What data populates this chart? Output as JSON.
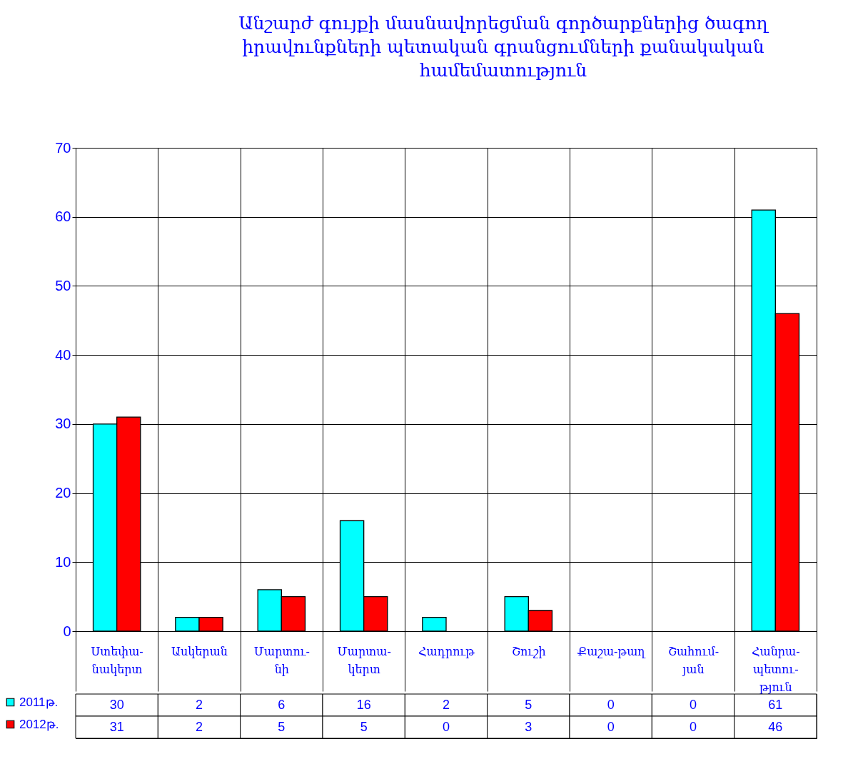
{
  "chart_data": {
    "type": "bar",
    "title": "Անշարժ գույքի մասնավորեցման գործարքներից ծագող\nիրավունքների պետական գրանցումների քանակական\nհամեմատություն",
    "categories": [
      "Ստեփա-\nնակերտ",
      "Ասկերան",
      "Մարտու-\nնի",
      "Մարտա-\nկերտ",
      "Հադրութ",
      "Շուշի",
      "Քաշա-թաղ",
      "Շահում-\nյան",
      "Հանրա-\nպետու-\nթյուն"
    ],
    "series": [
      {
        "name": "2011թ.",
        "color": "#00ffff",
        "values": [
          30,
          2,
          6,
          16,
          2,
          5,
          0,
          0,
          61
        ]
      },
      {
        "name": "2012թ.",
        "color": "#ff0000",
        "values": [
          31,
          2,
          5,
          5,
          0,
          3,
          0,
          0,
          46
        ]
      }
    ],
    "ylim": [
      0,
      70
    ],
    "yticks": [
      0,
      10,
      20,
      30,
      40,
      50,
      60,
      70
    ],
    "grid": true,
    "legend": "bottom left",
    "data_labels": true
  }
}
